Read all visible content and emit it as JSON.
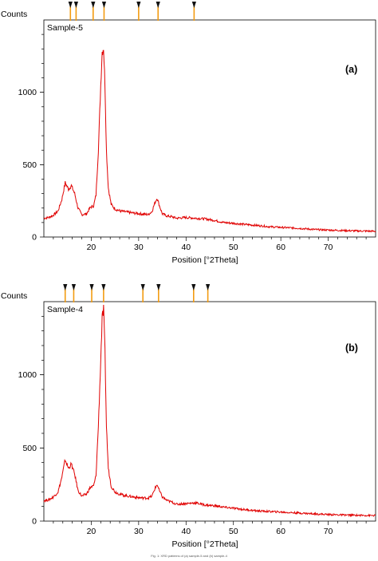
{
  "colors": {
    "trace": "#e00000",
    "stick": "#f39c12",
    "marker": "#111111",
    "axis": "#000000"
  },
  "caption": "Fig. 1: XRD patterns of (a) sample-5 and (b) sample-4",
  "chart_data": [
    {
      "type": "line",
      "panel_label": "(a)",
      "legend": "Sample-5",
      "ylabel": "Counts",
      "xlabel": "Position [°2Theta]",
      "xlim": [
        10,
        80
      ],
      "ylim": [
        0,
        1500
      ],
      "xticks": [
        20,
        30,
        40,
        50,
        60,
        70
      ],
      "yticks": [
        0,
        500,
        1000
      ],
      "reference_peaks": [
        15.6,
        16.8,
        20.4,
        22.7,
        30.0,
        34.1,
        41.7
      ],
      "series": [
        {
          "x": [
            10,
            11,
            12,
            13,
            13.8,
            14.5,
            15.2,
            15.8,
            16.5,
            17.2,
            18,
            19,
            19.8,
            20.5,
            21,
            21.5,
            22,
            22.3,
            22.6,
            22.9,
            23.2,
            23.6,
            24.2,
            25,
            26,
            27,
            28,
            29,
            30,
            31,
            32,
            32.8,
            33.4,
            33.9,
            34.4,
            35,
            36,
            37,
            38,
            40,
            42,
            44,
            46,
            48,
            50,
            52,
            55,
            58,
            61,
            64,
            67,
            70,
            73,
            76,
            80
          ],
          "values": [
            130,
            135,
            150,
            180,
            260,
            375,
            330,
            355,
            300,
            200,
            155,
            160,
            205,
            215,
            290,
            600,
            1050,
            1280,
            1310,
            1050,
            600,
            340,
            225,
            195,
            180,
            175,
            170,
            165,
            162,
            158,
            155,
            175,
            235,
            270,
            215,
            160,
            145,
            140,
            130,
            135,
            130,
            125,
            115,
            100,
            95,
            88,
            80,
            70,
            65,
            60,
            52,
            48,
            45,
            42,
            40
          ]
        }
      ]
    },
    {
      "type": "line",
      "panel_label": "(b)",
      "legend": "Sample-4",
      "ylabel": "Counts",
      "xlabel": "Position [°2Theta]",
      "xlim": [
        10,
        80
      ],
      "ylim": [
        0,
        1500
      ],
      "xticks": [
        20,
        30,
        40,
        50,
        60,
        70
      ],
      "yticks": [
        0,
        500,
        1000
      ],
      "reference_peaks": [
        14.5,
        16.3,
        20.1,
        22.6,
        30.9,
        34.2,
        41.6,
        44.6
      ],
      "series": [
        {
          "x": [
            10,
            11,
            12,
            13,
            13.8,
            14.5,
            15.2,
            15.8,
            16.5,
            17.2,
            18,
            19,
            19.8,
            20.5,
            21,
            21.5,
            22,
            22.3,
            22.6,
            22.9,
            23.2,
            23.6,
            24.2,
            25,
            26,
            27,
            28,
            29,
            30,
            31,
            32,
            32.8,
            33.4,
            33.9,
            34.4,
            35,
            36,
            37,
            38,
            40,
            42,
            44,
            46,
            48,
            50,
            52,
            55,
            58,
            61,
            64,
            67,
            70,
            73,
            76,
            80
          ],
          "values": [
            140,
            145,
            165,
            200,
            300,
            420,
            360,
            390,
            320,
            210,
            170,
            185,
            230,
            240,
            310,
            650,
            1100,
            1380,
            1440,
            1150,
            650,
            360,
            240,
            200,
            185,
            175,
            170,
            165,
            160,
            158,
            158,
            170,
            220,
            250,
            205,
            165,
            140,
            130,
            115,
            120,
            125,
            110,
            105,
            95,
            88,
            80,
            70,
            65,
            60,
            55,
            50,
            45,
            42,
            40,
            38
          ]
        }
      ]
    }
  ]
}
